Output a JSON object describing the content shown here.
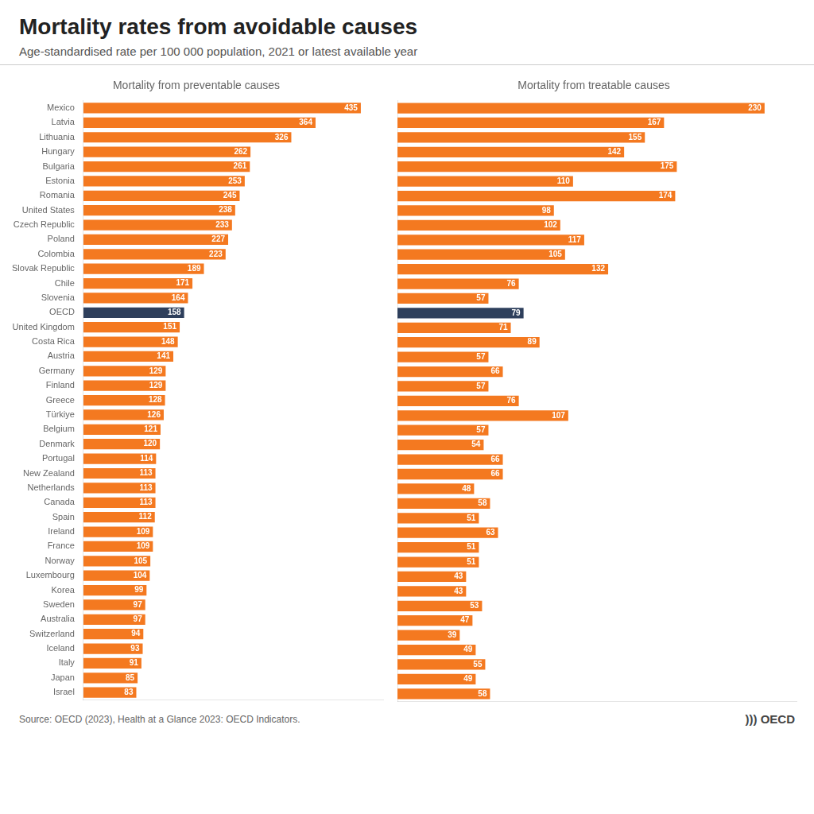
{
  "title": "Mortality rates from avoidable causes",
  "subtitle": "Age-standardised rate per 100 000 population, 2021 or latest available year",
  "annotations": [
    "Source: OECD (2023), Health at a Glance 2023: OECD Indicators.",
    "))) OECD"
  ],
  "chart_data": [
    {
      "type": "bar",
      "orientation": "horizontal",
      "title": "Mortality from preventable causes",
      "categories": [
        "Mexico",
        "Latvia",
        "Lithuania",
        "Hungary",
        "Bulgaria",
        "Estonia",
        "Romania",
        "United States",
        "Czech Republic",
        "Poland",
        "Colombia",
        "Slovak Republic",
        "Chile",
        "Slovenia",
        "OECD",
        "United Kingdom",
        "Costa Rica",
        "Austria",
        "Germany",
        "Finland",
        "Greece",
        "Türkiye",
        "Belgium",
        "Denmark",
        "Portugal",
        "New Zealand",
        "Netherlands",
        "Canada",
        "Spain",
        "Ireland",
        "France",
        "Norway",
        "Luxembourg",
        "Korea",
        "Sweden",
        "Australia",
        "Switzerland",
        "Iceland",
        "Italy",
        "Japan",
        "Israel"
      ],
      "values": [
        435,
        364,
        326,
        262,
        261,
        253,
        245,
        238,
        233,
        227,
        223,
        189,
        171,
        164,
        158,
        151,
        148,
        141,
        129,
        129,
        128,
        126,
        121,
        120,
        114,
        113,
        113,
        113,
        112,
        109,
        109,
        105,
        104,
        99,
        97,
        97,
        94,
        93,
        91,
        85,
        83
      ],
      "colors": [
        "#F47920",
        "#F47920",
        "#F47920",
        "#F47920",
        "#F47920",
        "#F47920",
        "#F47920",
        "#F47920",
        "#F47920",
        "#F47920",
        "#F47920",
        "#F47920",
        "#F47920",
        "#F47920",
        "#2E3F5C",
        "#F47920",
        "#F47920",
        "#F47920",
        "#F47920",
        "#F47920",
        "#F47920",
        "#F47920",
        "#F47920",
        "#F47920",
        "#F47920",
        "#F47920",
        "#F47920",
        "#F47920",
        "#F47920",
        "#F47920",
        "#F47920",
        "#F47920",
        "#F47920",
        "#F47920",
        "#F47920",
        "#F47920",
        "#F47920",
        "#F47920",
        "#F47920",
        "#F47920",
        "#F47920"
      ],
      "xlim": [
        0,
        470
      ],
      "grid": false,
      "data_labels": true,
      "tick_labels": "y"
    },
    {
      "type": "bar",
      "orientation": "horizontal",
      "title": "Mortality from treatable causes",
      "categories": [
        "Mexico",
        "Latvia",
        "Lithuania",
        "Hungary",
        "Bulgaria",
        "Estonia",
        "Romania",
        "United States",
        "Czech Republic",
        "Poland",
        "Colombia",
        "Slovak Republic",
        "Chile",
        "Slovenia",
        "OECD",
        "United Kingdom",
        "Costa Rica",
        "Austria",
        "Germany",
        "Finland",
        "Greece",
        "Türkiye",
        "Belgium",
        "Denmark",
        "Portugal",
        "New Zealand",
        "Netherlands",
        "Canada",
        "Spain",
        "Ireland",
        "France",
        "Norway",
        "Luxembourg",
        "Korea",
        "Sweden",
        "Australia",
        "Switzerland",
        "Iceland",
        "Italy",
        "Japan",
        "Israel"
      ],
      "values": [
        230,
        167,
        155,
        142,
        175,
        110,
        174,
        98,
        102,
        117,
        105,
        132,
        76,
        57,
        79,
        71,
        89,
        57,
        66,
        57,
        76,
        107,
        57,
        54,
        66,
        66,
        48,
        58,
        51,
        63,
        51,
        51,
        43,
        43,
        53,
        47,
        39,
        49,
        55,
        49,
        58
      ],
      "colors": [
        "#F47920",
        "#F47920",
        "#F47920",
        "#F47920",
        "#F47920",
        "#F47920",
        "#F47920",
        "#F47920",
        "#F47920",
        "#F47920",
        "#F47920",
        "#F47920",
        "#F47920",
        "#F47920",
        "#2E3F5C",
        "#F47920",
        "#F47920",
        "#F47920",
        "#F47920",
        "#F47920",
        "#F47920",
        "#F47920",
        "#F47920",
        "#F47920",
        "#F47920",
        "#F47920",
        "#F47920",
        "#F47920",
        "#F47920",
        "#F47920",
        "#F47920",
        "#F47920",
        "#F47920",
        "#F47920",
        "#F47920",
        "#F47920",
        "#F47920",
        "#F47920",
        "#F47920",
        "#F47920",
        "#F47920"
      ],
      "xlim": [
        0,
        250
      ],
      "grid": false,
      "data_labels": true,
      "tick_labels": false
    }
  ]
}
